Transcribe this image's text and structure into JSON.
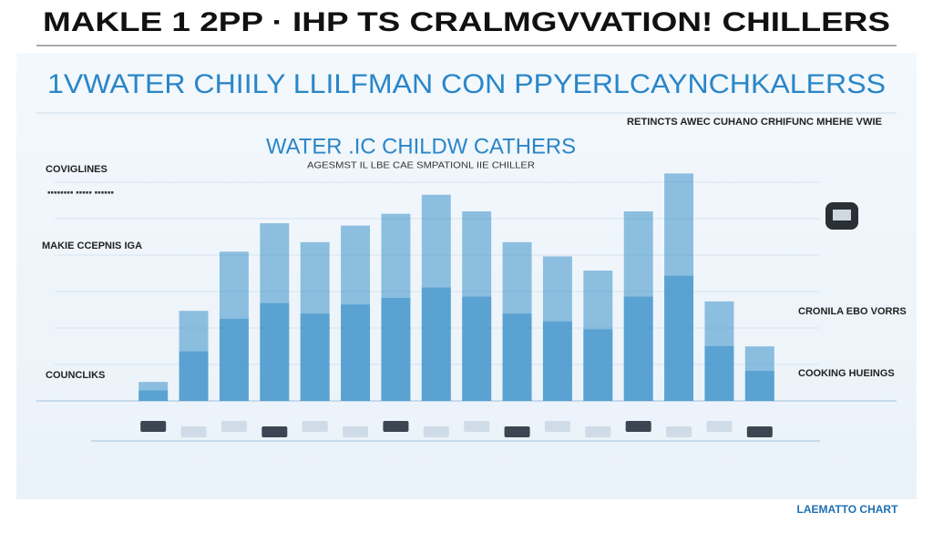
{
  "header": {
    "title": "MAKLE 1 2PP · IHP TS CRALMGVVATION! CHILLERS",
    "subtitle": "1VWATER CHIILY LLILFMAN CON PPYERLCAYNCHKALERSS"
  },
  "chart_data": {
    "type": "bar",
    "title": "WATER .IC CHILDW CATHERS",
    "subtitle": "AGESMST IL  LBE CAE SMPATIONL IIE  CHILLER",
    "categories": [
      null,
      null,
      null,
      null,
      null,
      null,
      null,
      null,
      null,
      null,
      null,
      null,
      null,
      null,
      null,
      null
    ],
    "values": [
      8,
      38,
      63,
      75,
      67,
      74,
      79,
      87,
      80,
      67,
      61,
      55,
      80,
      96,
      42,
      23
    ],
    "color": "#3a8fc9",
    "ylim": [
      0,
      100
    ]
  },
  "side_notes": {
    "left_top": "COVIGLINES",
    "left_mid": "MAKIE CCEPNIS IGA",
    "left_bottom": "COUNCLIKS",
    "right_top": "RETINCTS AWEC CUHANO CRHIFUNC MHEHE VWIE",
    "right_mid": "CRONILA EBO VORRS",
    "right_bottom": "COOKING HUEINGS"
  },
  "footer": {
    "brand": "LAEMATTO CHART"
  }
}
